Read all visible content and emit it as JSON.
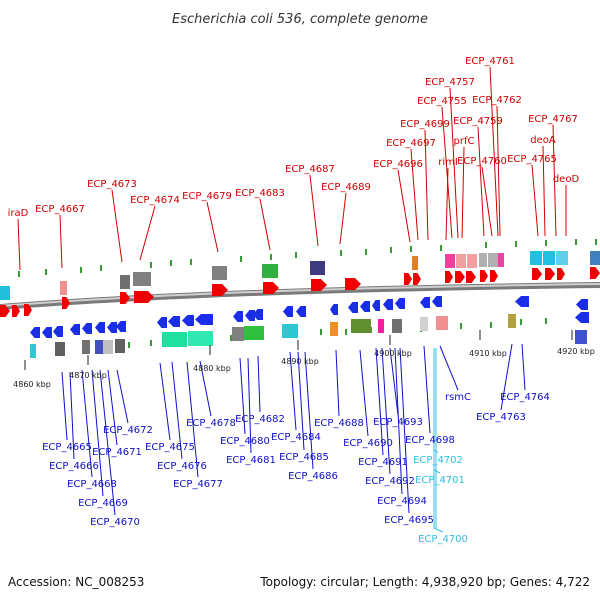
{
  "title": "Escherichia coli 536, complete genome",
  "footer": {
    "accession": "Accession: NC_008253",
    "topology": "Topology: circular; Length: 4,938,920 bp; Genes: 4,722"
  },
  "colors": {
    "top_label": "#d00000",
    "bottom_label": "#1010c8",
    "highlight_label": "#30c0e0",
    "forward_arrow": "#ee0000",
    "reverse_arrow": "#1a2ee8",
    "backbone": "#888888"
  },
  "ticks": [
    "4860 kbp",
    "4870 kbp",
    "4880 kbp",
    "4890 kbp",
    "4900 kbp",
    "4910 kbp",
    "4920 kbp"
  ],
  "top_labels": [
    "iraD",
    "ECP_4667",
    "ECP_4673",
    "ECP_4674",
    "ECP_4679",
    "ECP_4683",
    "ECP_4687",
    "ECP_4689",
    "ECP_4696",
    "ECP_4697",
    "ECP_4699",
    "rimI",
    "ECP_4755",
    "prfC",
    "ECP_4757",
    "ECP_4759",
    "ECP_4760",
    "ECP_4761",
    "ECP_4762",
    "ECP_4765",
    "deoA",
    "ECP_4767",
    "deoD"
  ],
  "bottom_labels": [
    "ECP_4665",
    "ECP_4666",
    "ECP_4668",
    "ECP_4669",
    "ECP_4670",
    "ECP_4671",
    "ECP_4672",
    "ECP_4675",
    "ECP_4676",
    "ECP_4677",
    "ECP_4678",
    "ECP_4680",
    "ECP_4681",
    "ECP_4682",
    "ECP_4684",
    "ECP_4685",
    "ECP_4686",
    "ECP_4688",
    "ECP_4690",
    "ECP_4691",
    "ECP_4692",
    "ECP_4693",
    "ECP_4694",
    "ECP_4695",
    "ECP_4698",
    "ECP_4700",
    "ECP_4701",
    "ECP_4702",
    "rsmC",
    "ECP_4763",
    "ECP_4764"
  ],
  "highlight_labels": [
    "ECP_4700",
    "ECP_4701",
    "ECP_4702"
  ]
}
